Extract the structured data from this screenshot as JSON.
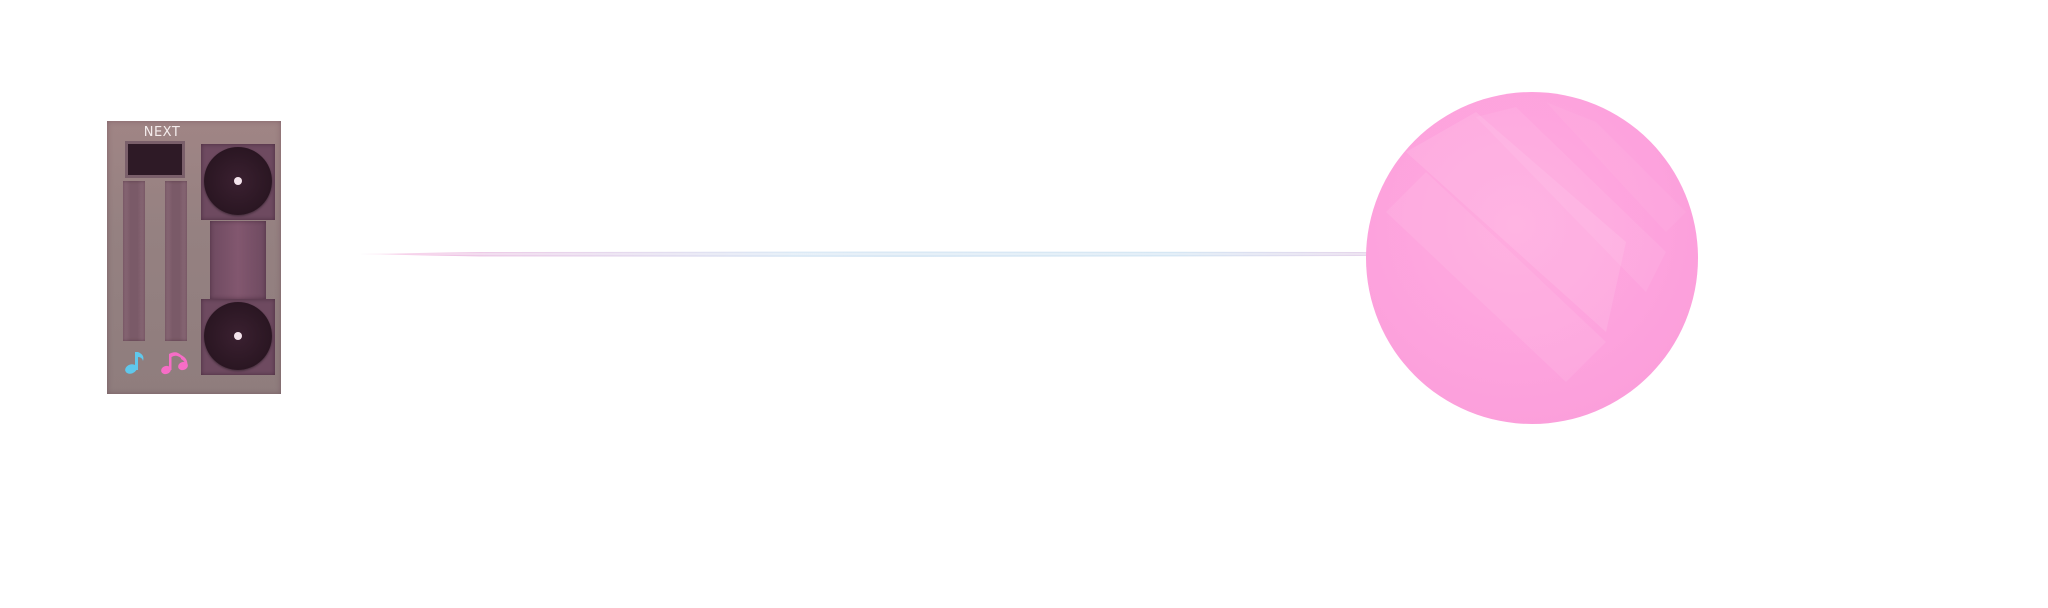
{
  "panel": {
    "next_label": "NEXT",
    "icons": {
      "left": "music-note-icon",
      "right": "music-notes-icon"
    }
  },
  "colors": {
    "panel": "#958181",
    "next_box": "#2e1a26",
    "speaker_box": "#6e4a60",
    "speaker_cone": "#2a1622",
    "note_icon_blue": "#5fc8ec",
    "notes_icon_pink": "#f66dc6",
    "ball_pink": "#fda2dd",
    "line_pink": "#f4a3d6",
    "line_blue": "#cfe3f2"
  }
}
